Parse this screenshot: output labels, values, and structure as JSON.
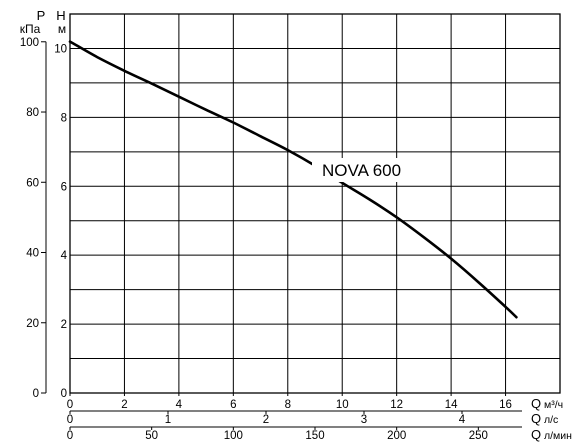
{
  "chart_data": {
    "type": "line",
    "grid": true,
    "x_axes": [
      {
        "symbol": "Q",
        "unit": "м³/ч",
        "range": [
          0,
          18
        ],
        "ticks": [
          0,
          2,
          4,
          6,
          8,
          10,
          12,
          14,
          16
        ]
      },
      {
        "symbol": "Q",
        "unit": "л/с",
        "ticks": [
          0,
          1,
          2,
          3,
          4
        ]
      },
      {
        "symbol": "Q",
        "unit": "л/мин",
        "ticks": [
          0,
          50,
          100,
          150,
          200,
          250
        ]
      }
    ],
    "y_axes": [
      {
        "symbol": "P",
        "unit": "кПа",
        "ticks": [
          0,
          20,
          40,
          60,
          80,
          100
        ]
      },
      {
        "symbol": "H",
        "unit": "м",
        "range": [
          0,
          11
        ],
        "ticks": [
          0,
          2,
          4,
          6,
          8,
          10
        ]
      }
    ],
    "series": [
      {
        "name": "NOVA 600",
        "x": [
          0,
          1,
          2,
          3,
          4,
          5,
          6,
          7,
          8,
          9,
          10,
          11,
          12,
          13,
          14,
          15,
          16,
          16.4
        ],
        "y": [
          10.2,
          9.75,
          9.35,
          8.98,
          8.6,
          8.22,
          7.85,
          7.45,
          7.05,
          6.6,
          6.1,
          5.62,
          5.1,
          4.52,
          3.9,
          3.22,
          2.5,
          2.2
        ]
      }
    ],
    "colors": {
      "line": "#000000",
      "grid": "#000000",
      "background": "#ffffff"
    }
  }
}
